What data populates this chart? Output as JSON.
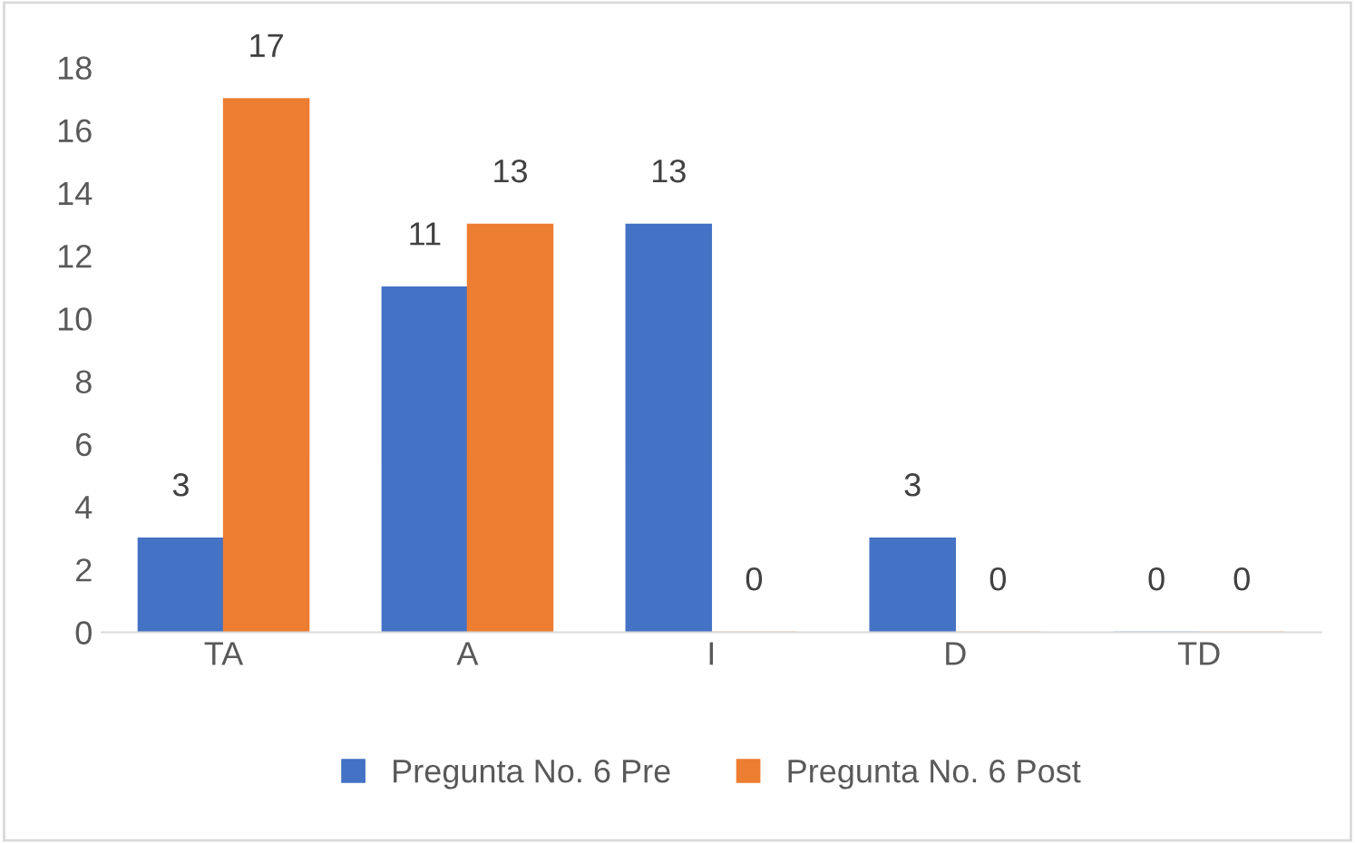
{
  "chart_data": {
    "type": "bar",
    "categories": [
      "TA",
      "A",
      "I",
      "D",
      "TD"
    ],
    "series": [
      {
        "name": "Pregunta No. 6 Pre",
        "color": "#4472c4",
        "values": [
          3,
          11,
          13,
          3,
          0
        ]
      },
      {
        "name": "Pregunta No. 6 Post",
        "color": "#ed7d31",
        "values": [
          17,
          13,
          0,
          0,
          0
        ]
      }
    ],
    "ylim": [
      0,
      18
    ],
    "yticks": [
      0,
      2,
      4,
      6,
      8,
      10,
      12,
      14,
      16,
      18
    ],
    "grid": false,
    "legend": "bottom",
    "data_labels": true
  }
}
